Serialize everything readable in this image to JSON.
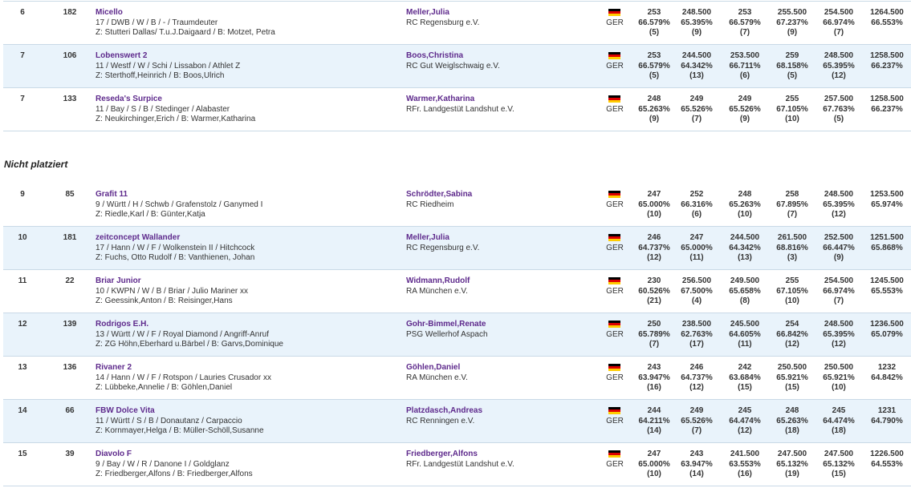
{
  "sections": [
    {
      "rows": [
        {
          "rank": "6",
          "number": "182",
          "horse": "Micello",
          "horse_details": "17 / DWB / W / B / - / Traumdeuter",
          "breeding": "Z: Stutteri Dallas/ T.u.J.Daigaard / B: Motzet, Petra",
          "rider": "Meller,Julia",
          "club": "RC Regensburg e.V.",
          "nation": "GER",
          "scores": [
            {
              "points": "253",
              "percent": "66.579%",
              "placing": "(5)"
            },
            {
              "points": "248.500",
              "percent": "65.395%",
              "placing": "(9)"
            },
            {
              "points": "253",
              "percent": "66.579%",
              "placing": "(7)"
            },
            {
              "points": "255.500",
              "percent": "67.237%",
              "placing": "(9)"
            },
            {
              "points": "254.500",
              "percent": "66.974%",
              "placing": "(7)"
            }
          ],
          "total": {
            "points": "1264.500",
            "percent": "66.553%"
          }
        },
        {
          "rank": "7",
          "number": "106",
          "horse": "Lobenswert 2",
          "horse_details": "11 / Westf / W / Schi / Lissabon / Athlet Z",
          "breeding": "Z: Sterthoff,Heinrich / B: Boos,Ulrich",
          "rider": "Boos,Christina",
          "club": "RC Gut Weiglschwaig e.V.",
          "nation": "GER",
          "scores": [
            {
              "points": "253",
              "percent": "66.579%",
              "placing": "(5)"
            },
            {
              "points": "244.500",
              "percent": "64.342%",
              "placing": "(13)"
            },
            {
              "points": "253.500",
              "percent": "66.711%",
              "placing": "(6)"
            },
            {
              "points": "259",
              "percent": "68.158%",
              "placing": "(5)"
            },
            {
              "points": "248.500",
              "percent": "65.395%",
              "placing": "(12)"
            }
          ],
          "total": {
            "points": "1258.500",
            "percent": "66.237%"
          }
        },
        {
          "rank": "7",
          "number": "133",
          "horse": "Reseda's Surpice",
          "horse_details": "11 / Bay / S / B / Stedinger / Alabaster",
          "breeding": "Z: Neukirchinger,Erich / B: Warmer,Katharina",
          "rider": "Warmer,Katharina",
          "club": "RFr. Landgestüt Landshut e.V.",
          "nation": "GER",
          "scores": [
            {
              "points": "248",
              "percent": "65.263%",
              "placing": "(9)"
            },
            {
              "points": "249",
              "percent": "65.526%",
              "placing": "(7)"
            },
            {
              "points": "249",
              "percent": "65.526%",
              "placing": "(9)"
            },
            {
              "points": "255",
              "percent": "67.105%",
              "placing": "(10)"
            },
            {
              "points": "257.500",
              "percent": "67.763%",
              "placing": "(5)"
            }
          ],
          "total": {
            "points": "1258.500",
            "percent": "66.237%"
          }
        }
      ]
    },
    {
      "title": "Nicht platziert",
      "rows": [
        {
          "rank": "9",
          "number": "85",
          "horse": "Grafit 11",
          "horse_details": "9 / Württ / H / Schwb / Grafenstolz / Ganymed I",
          "breeding": "Z: Riedle,Karl / B: Günter,Katja",
          "rider": "Schrödter,Sabina",
          "club": "RC Riedheim",
          "nation": "GER",
          "scores": [
            {
              "points": "247",
              "percent": "65.000%",
              "placing": "(10)"
            },
            {
              "points": "252",
              "percent": "66.316%",
              "placing": "(6)"
            },
            {
              "points": "248",
              "percent": "65.263%",
              "placing": "(10)"
            },
            {
              "points": "258",
              "percent": "67.895%",
              "placing": "(7)"
            },
            {
              "points": "248.500",
              "percent": "65.395%",
              "placing": "(12)"
            }
          ],
          "total": {
            "points": "1253.500",
            "percent": "65.974%"
          }
        },
        {
          "rank": "10",
          "number": "181",
          "horse": "zeitconcept Wallander",
          "horse_details": "17 / Hann / W / F / Wolkenstein II / Hitchcock",
          "breeding": "Z: Fuchs, Otto Rudolf / B: Vanthienen, Johan",
          "rider": "Meller,Julia",
          "club": "RC Regensburg e.V.",
          "nation": "GER",
          "scores": [
            {
              "points": "246",
              "percent": "64.737%",
              "placing": "(12)"
            },
            {
              "points": "247",
              "percent": "65.000%",
              "placing": "(11)"
            },
            {
              "points": "244.500",
              "percent": "64.342%",
              "placing": "(13)"
            },
            {
              "points": "261.500",
              "percent": "68.816%",
              "placing": "(3)"
            },
            {
              "points": "252.500",
              "percent": "66.447%",
              "placing": "(9)"
            }
          ],
          "total": {
            "points": "1251.500",
            "percent": "65.868%"
          }
        },
        {
          "rank": "11",
          "number": "22",
          "horse": "Briar Junior",
          "horse_details": "10 / KWPN / W / B / Briar / Julio Mariner xx",
          "breeding": "Z: Geessink,Anton / B: Reisinger,Hans",
          "rider": "Widmann,Rudolf",
          "club": "RA München e.V.",
          "nation": "GER",
          "scores": [
            {
              "points": "230",
              "percent": "60.526%",
              "placing": "(21)"
            },
            {
              "points": "256.500",
              "percent": "67.500%",
              "placing": "(4)"
            },
            {
              "points": "249.500",
              "percent": "65.658%",
              "placing": "(8)"
            },
            {
              "points": "255",
              "percent": "67.105%",
              "placing": "(10)"
            },
            {
              "points": "254.500",
              "percent": "66.974%",
              "placing": "(7)"
            }
          ],
          "total": {
            "points": "1245.500",
            "percent": "65.553%"
          }
        },
        {
          "rank": "12",
          "number": "139",
          "horse": "Rodrigos E.H.",
          "horse_details": "13 / Württ / W / F / Royal Diamond / Angriff-Anruf",
          "breeding": "Z: ZG Höhn,Eberhard u.Bärbel / B: Garvs,Dominique",
          "rider": "Gohr-Bimmel,Renate",
          "club": "PSG Wellerhof Aspach",
          "nation": "GER",
          "scores": [
            {
              "points": "250",
              "percent": "65.789%",
              "placing": "(7)"
            },
            {
              "points": "238.500",
              "percent": "62.763%",
              "placing": "(17)"
            },
            {
              "points": "245.500",
              "percent": "64.605%",
              "placing": "(11)"
            },
            {
              "points": "254",
              "percent": "66.842%",
              "placing": "(12)"
            },
            {
              "points": "248.500",
              "percent": "65.395%",
              "placing": "(12)"
            }
          ],
          "total": {
            "points": "1236.500",
            "percent": "65.079%"
          }
        },
        {
          "rank": "13",
          "number": "136",
          "horse": "Rivaner 2",
          "horse_details": "14 / Hann / W / F / Rotspon / Lauries Crusador xx",
          "breeding": "Z: Lübbeke,Annelie / B: Göhlen,Daniel",
          "rider": "Göhlen,Daniel",
          "club": "RA München e.V.",
          "nation": "GER",
          "scores": [
            {
              "points": "243",
              "percent": "63.947%",
              "placing": "(16)"
            },
            {
              "points": "246",
              "percent": "64.737%",
              "placing": "(12)"
            },
            {
              "points": "242",
              "percent": "63.684%",
              "placing": "(15)"
            },
            {
              "points": "250.500",
              "percent": "65.921%",
              "placing": "(15)"
            },
            {
              "points": "250.500",
              "percent": "65.921%",
              "placing": "(10)"
            }
          ],
          "total": {
            "points": "1232",
            "percent": "64.842%"
          }
        },
        {
          "rank": "14",
          "number": "66",
          "horse": "FBW Dolce Vita",
          "horse_details": "11 / Württ / S / B / Donautanz / Carpaccio",
          "breeding": "Z: Kornmayer,Helga / B: Müller-Schöll,Susanne",
          "rider": "Platzdasch,Andreas",
          "club": "RC Renningen e.V.",
          "nation": "GER",
          "scores": [
            {
              "points": "244",
              "percent": "64.211%",
              "placing": "(14)"
            },
            {
              "points": "249",
              "percent": "65.526%",
              "placing": "(7)"
            },
            {
              "points": "245",
              "percent": "64.474%",
              "placing": "(12)"
            },
            {
              "points": "248",
              "percent": "65.263%",
              "placing": "(18)"
            },
            {
              "points": "245",
              "percent": "64.474%",
              "placing": "(18)"
            }
          ],
          "total": {
            "points": "1231",
            "percent": "64.790%"
          }
        },
        {
          "rank": "15",
          "number": "39",
          "horse": "Diavolo F",
          "horse_details": "9 / Bay / W / R / Danone I / Goldglanz",
          "breeding": "Z: Friedberger,Alfons / B: Friedberger,Alfons",
          "rider": "Friedberger,Alfons",
          "club": "RFr. Landgestüt Landshut e.V.",
          "nation": "GER",
          "scores": [
            {
              "points": "247",
              "percent": "65.000%",
              "placing": "(10)"
            },
            {
              "points": "243",
              "percent": "63.947%",
              "placing": "(14)"
            },
            {
              "points": "241.500",
              "percent": "63.553%",
              "placing": "(16)"
            },
            {
              "points": "247.500",
              "percent": "65.132%",
              "placing": "(19)"
            },
            {
              "points": "247.500",
              "percent": "65.132%",
              "placing": "(15)"
            }
          ],
          "total": {
            "points": "1226.500",
            "percent": "64.553%"
          }
        }
      ]
    }
  ]
}
